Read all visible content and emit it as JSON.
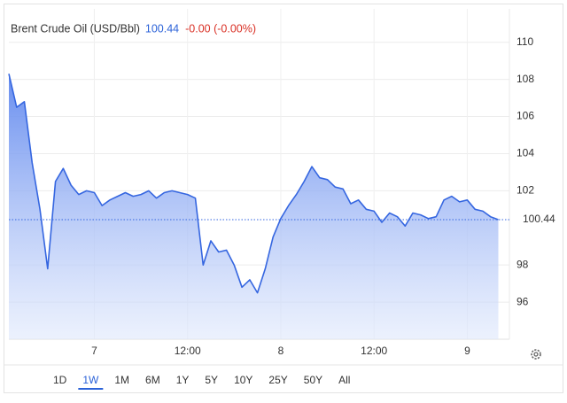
{
  "chart_data": {
    "type": "area",
    "title": "Brent Crude Oil (USD/Bbl)",
    "last_price": 100.44,
    "change": "-0.00 (-0.00%)",
    "categories": [
      null,
      null,
      null,
      null,
      null,
      null,
      null,
      null,
      null,
      null,
      null,
      "7",
      null,
      null,
      null,
      null,
      null,
      null,
      null,
      null,
      null,
      null,
      null,
      "12:00",
      null,
      null,
      null,
      null,
      null,
      null,
      null,
      null,
      null,
      null,
      null,
      "8",
      null,
      null,
      null,
      null,
      null,
      null,
      null,
      null,
      null,
      null,
      null,
      "12:00",
      null,
      null,
      null,
      null,
      null,
      null,
      null,
      null,
      null,
      null,
      null,
      "9",
      null,
      null,
      null,
      null
    ],
    "series": [
      {
        "name": "Brent Crude Oil",
        "color": "#3566e0",
        "values": [
          108.3,
          106.5,
          106.8,
          103.5,
          101,
          97.8,
          102.5,
          103.2,
          102.3,
          101.8,
          102,
          101.9,
          101.2,
          101.5,
          101.7,
          101.9,
          101.7,
          101.8,
          102,
          101.6,
          101.9,
          102,
          101.9,
          101.8,
          101.6,
          98,
          99.3,
          98.7,
          98.8,
          98,
          96.8,
          97.2,
          96.5,
          97.8,
          99.5,
          100.5,
          101.2,
          101.8,
          102.5,
          103.3,
          102.7,
          102.6,
          102.2,
          102.1,
          101.3,
          101.5,
          101,
          100.9,
          100.3,
          100.8,
          100.6,
          100.1,
          100.8,
          100.7,
          100.5,
          100.6,
          101.5,
          101.7,
          101.4,
          101.5,
          101,
          100.9,
          100.6,
          100.44
        ]
      }
    ],
    "ylim": [
      94,
      111.8
    ],
    "yticks": [
      96,
      98,
      102,
      104,
      106,
      108,
      110
    ],
    "grid": true,
    "ranges": [
      "1D",
      "1W",
      "1M",
      "6M",
      "1Y",
      "5Y",
      "10Y",
      "25Y",
      "50Y",
      "All"
    ],
    "selected_range": "1W"
  }
}
